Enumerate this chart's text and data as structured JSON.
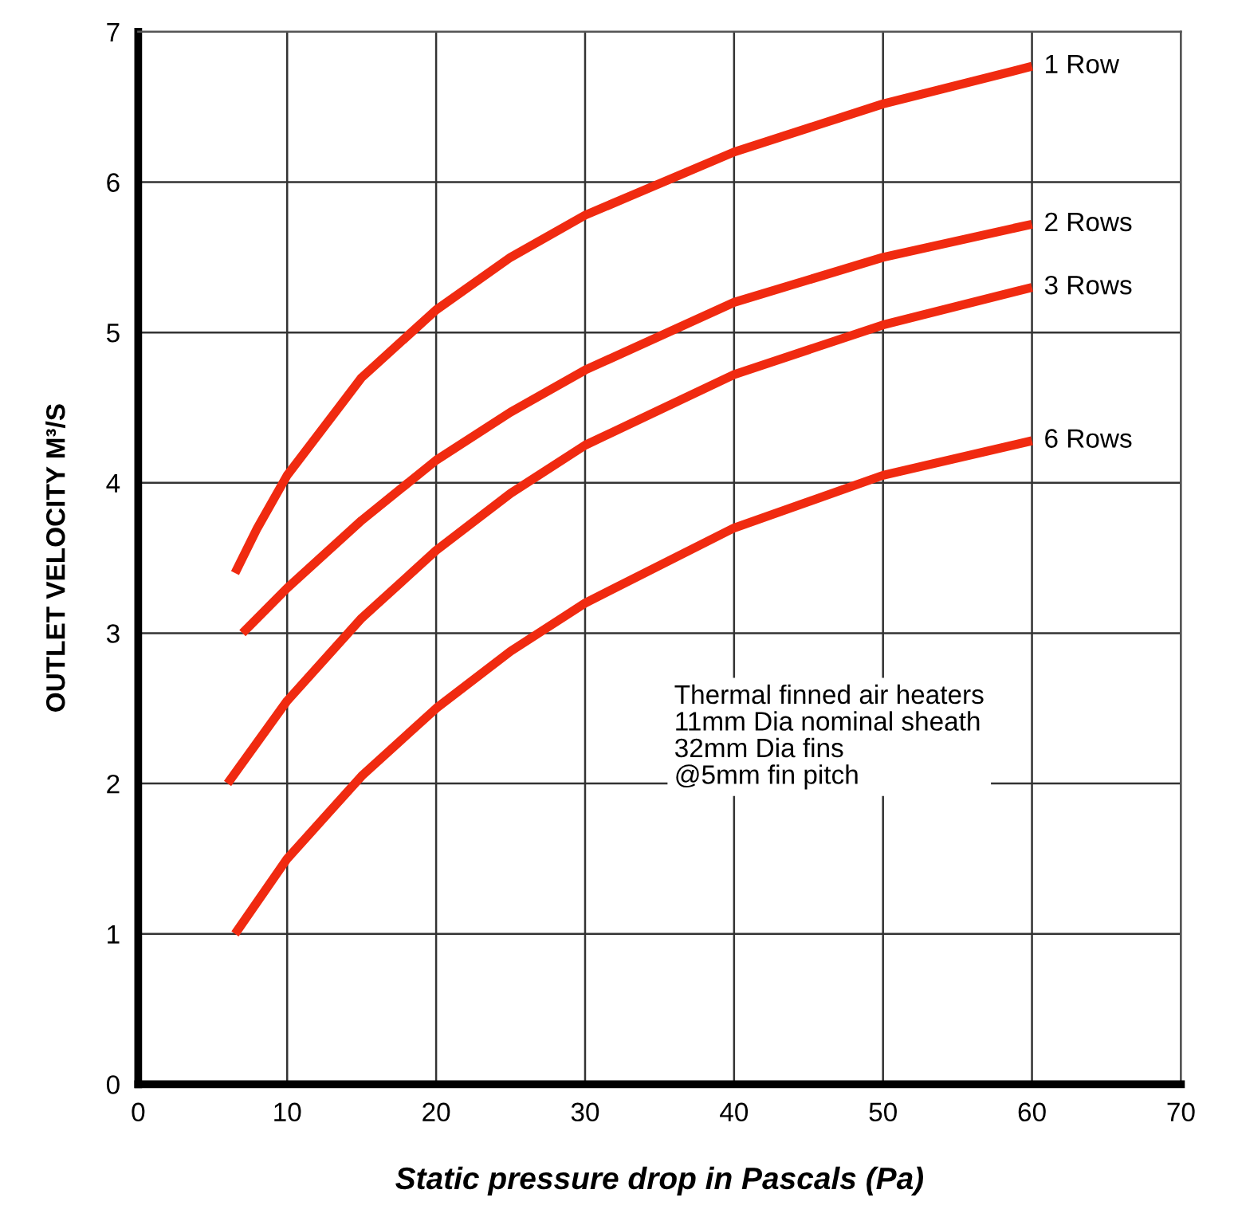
{
  "chart_data": {
    "type": "line",
    "xlabel": "Static pressure drop in Pascals (Pa)",
    "ylabel": "OUTLET VELOCITY M³/S",
    "xlim": [
      0,
      70
    ],
    "xticks": [
      0,
      10,
      20,
      30,
      40,
      50,
      60,
      70
    ],
    "ylim": [
      0,
      7
    ],
    "yticks": [
      0,
      1,
      2,
      3,
      4,
      5,
      6,
      7
    ],
    "grid": true,
    "legend": false,
    "marker": "none",
    "line_style": "solid",
    "series": [
      {
        "name": "1 Row",
        "color": "#f02a10",
        "x": [
          6.5,
          8,
          10,
          15,
          20,
          25,
          30,
          40,
          50,
          60
        ],
        "values": [
          3.4,
          3.7,
          4.05,
          4.7,
          5.15,
          5.5,
          5.78,
          6.2,
          6.52,
          6.77
        ]
      },
      {
        "name": "2 Rows",
        "color": "#f02a10",
        "x": [
          7,
          10,
          15,
          20,
          25,
          30,
          40,
          50,
          60
        ],
        "values": [
          3.0,
          3.3,
          3.75,
          4.15,
          4.47,
          4.75,
          5.2,
          5.5,
          5.72
        ]
      },
      {
        "name": "3 Rows",
        "color": "#f02a10",
        "x": [
          6,
          10,
          15,
          20,
          25,
          30,
          40,
          50,
          60
        ],
        "values": [
          2.0,
          2.55,
          3.1,
          3.55,
          3.93,
          4.25,
          4.72,
          5.05,
          5.3
        ]
      },
      {
        "name": "6 Rows",
        "color": "#f02a10",
        "x": [
          6.5,
          10,
          15,
          20,
          25,
          30,
          40,
          50,
          60
        ],
        "values": [
          1.0,
          1.5,
          2.05,
          2.5,
          2.88,
          3.2,
          3.7,
          4.05,
          4.28
        ]
      }
    ],
    "annotations": [
      "Thermal finned air heaters\n11mm Dia nominal sheath\n32mm Dia fins\n@5mm fin pitch"
    ]
  }
}
